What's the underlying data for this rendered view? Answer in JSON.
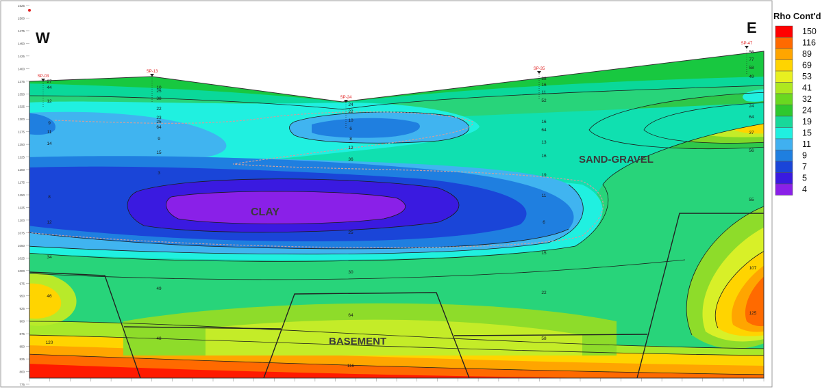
{
  "chart_data": {
    "type": "heatmap",
    "title": "",
    "legend_title": "Rho Cont'd",
    "legend_placement": "right",
    "direction_left": "W",
    "direction_right": "E",
    "legend_levels": [
      "150",
      "116",
      "89",
      "69",
      "53",
      "41",
      "32",
      "24",
      "19",
      "15",
      "11",
      "9",
      "7",
      "5",
      "4"
    ],
    "legend_colors": [
      "#ff0000",
      "#ff6a00",
      "#ffa500",
      "#ffd400",
      "#e8f020",
      "#aee820",
      "#6ad820",
      "#2ec82e",
      "#18d89a",
      "#20f0e0",
      "#40b0f0",
      "#1f7fe0",
      "#1a45d8",
      "#3a1ae0",
      "#8a20e8"
    ],
    "region_labels": [
      "CLAY",
      "SAND-GRAVEL",
      "BASEMENT"
    ],
    "station_labels": [
      "SP-03",
      "SP-13",
      "SP-24",
      "SP-35",
      "SP-47"
    ],
    "elevation_ticks": [
      "1525",
      "1500",
      "1475",
      "1450",
      "1425",
      "1400",
      "1375",
      "1350",
      "1325",
      "1300",
      "1275",
      "1250",
      "1225",
      "1200",
      "1175",
      "1150",
      "1125",
      "1100",
      "1075",
      "1050",
      "1025",
      "1000",
      "975",
      "950",
      "925",
      "900",
      "875",
      "850",
      "825",
      "800",
      "775"
    ],
    "contour_values": [
      {
        "value": "56"
      },
      {
        "value": "77"
      },
      {
        "value": "58"
      },
      {
        "value": "38"
      },
      {
        "value": "16"
      },
      {
        "value": "11"
      },
      {
        "value": "52"
      },
      {
        "value": "16"
      },
      {
        "value": "64"
      },
      {
        "value": "13"
      },
      {
        "value": "16"
      },
      {
        "value": "19"
      },
      {
        "value": "11"
      },
      {
        "value": "6"
      },
      {
        "value": "15"
      },
      {
        "value": "22"
      },
      {
        "value": "58"
      },
      {
        "value": "49"
      },
      {
        "value": "125"
      },
      {
        "value": "107"
      },
      {
        "value": "55"
      },
      {
        "value": "116"
      },
      {
        "value": "120"
      },
      {
        "value": "48"
      },
      {
        "value": "49"
      },
      {
        "value": "64"
      },
      {
        "value": "30"
      },
      {
        "value": "25"
      },
      {
        "value": "36"
      },
      {
        "value": "12"
      },
      {
        "value": "8"
      },
      {
        "value": "6"
      },
      {
        "value": "10"
      },
      {
        "value": "22"
      },
      {
        "value": "24"
      },
      {
        "value": "25"
      },
      {
        "value": "34"
      },
      {
        "value": "12"
      },
      {
        "value": "8"
      },
      {
        "value": "14"
      },
      {
        "value": "11"
      },
      {
        "value": "9"
      },
      {
        "value": "12"
      },
      {
        "value": "10"
      },
      {
        "value": "44"
      },
      {
        "value": "27"
      },
      {
        "value": "38"
      },
      {
        "value": "25"
      },
      {
        "value": "22"
      },
      {
        "value": "23"
      },
      {
        "value": "64"
      },
      {
        "value": "9"
      },
      {
        "value": "15"
      },
      {
        "value": "3"
      },
      {
        "value": "46"
      },
      {
        "value": "24"
      },
      {
        "value": "64"
      },
      {
        "value": "37"
      },
      {
        "value": "56"
      }
    ]
  }
}
